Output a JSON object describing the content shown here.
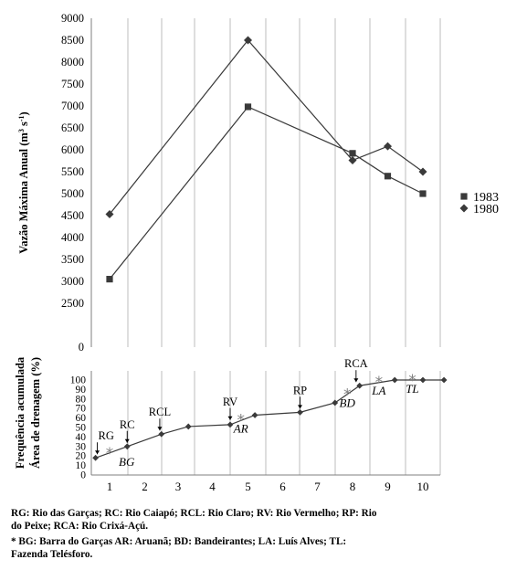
{
  "chart_data": [
    {
      "type": "line",
      "ylabel": "Vazão Máxima Anual (m³ s⁻¹)",
      "ylabel_parts": {
        "base": "Vazão Máxima Anual (m",
        "sup1": "3",
        "mid": " s",
        "sup2": "-1",
        "end": ")"
      },
      "ylim": [
        0,
        9000
      ],
      "yticks": [
        "0",
        "2500",
        "3000",
        "3500",
        "4000",
        "4500",
        "5000",
        "5500",
        "6000",
        "6500",
        "7000",
        "7500",
        "8000",
        "8500",
        "9000"
      ],
      "ytick_values": [
        0,
        2500,
        3000,
        3500,
        4000,
        4500,
        5000,
        5500,
        6000,
        6500,
        7000,
        7500,
        8000,
        8500,
        9000
      ],
      "grid": "vertical",
      "legend": "right",
      "series": [
        {
          "name": "1983",
          "marker": "square",
          "x": [
            1,
            5,
            8,
            9,
            10
          ],
          "values": [
            3050,
            6980,
            5920,
            5400,
            5000
          ]
        },
        {
          "name": "1980",
          "marker": "diamond",
          "x": [
            1,
            5,
            8,
            9,
            10
          ],
          "values": [
            4530,
            8500,
            5760,
            6080,
            5500
          ]
        }
      ]
    },
    {
      "type": "line",
      "ylabel_lines": [
        "Frequência acumulada",
        "Área de drenagem (%)"
      ],
      "ylim": [
        0,
        100
      ],
      "yticks": [
        "0",
        "10",
        "20",
        "30",
        "40",
        "50",
        "60",
        "70",
        "80",
        "90",
        "100"
      ],
      "xlim": [
        0.6,
        10.5
      ],
      "xticks": [
        "1",
        "2",
        "3",
        "4",
        "5",
        "6",
        "7",
        "8",
        "9",
        "10"
      ],
      "grid": "vertical",
      "series": [
        {
          "marker": "diamond",
          "x": [
            0.6,
            1.5,
            2.5,
            3.3,
            4.5,
            5.2,
            6.5,
            7.5,
            8.2,
            9.2,
            10.0,
            10.6
          ],
          "values": [
            18,
            30,
            43,
            51,
            53,
            63,
            66,
            76,
            94,
            100,
            100,
            100
          ]
        }
      ],
      "station_markers": [
        {
          "label": "BG",
          "x": 1.0,
          "value": 23
        },
        {
          "label": "AR",
          "x": 4.8,
          "value": 58
        },
        {
          "label": "BD",
          "x": 7.85,
          "value": 85
        },
        {
          "label": "LA",
          "x": 8.75,
          "value": 98
        },
        {
          "label": "TL",
          "x": 9.7,
          "value": 100
        }
      ],
      "river_arrows": [
        {
          "label": "RG",
          "x": 0.65,
          "value": 19
        },
        {
          "label": "RC",
          "x": 1.5,
          "value": 31
        },
        {
          "label": "RCL",
          "x": 2.45,
          "value": 44
        },
        {
          "label": "RV",
          "x": 4.5,
          "value": 55
        },
        {
          "label": "RP",
          "x": 6.5,
          "value": 67
        },
        {
          "label": "RCA",
          "x": 8.1,
          "value": 95
        }
      ]
    }
  ],
  "captions": {
    "rivers": "RG: Rio das Garças; RC: Rio Caiapó; RCL: Rio Claro; RV: Rio Vermelho; RP: Rio\ndo Peixe; RCA: Rio Crixá-Açú.",
    "stations": "* BG: Barra do Garças AR: Aruanã; BD: Bandeirantes; LA: Luís Alves; TL:\n   Fazenda Telésforo."
  },
  "colors": {
    "line": "#3a3a3a",
    "marker": "#3a3a3a",
    "grid": "#bdbdbd",
    "axis": "#7f7f7f",
    "station_marker": "#808080"
  }
}
